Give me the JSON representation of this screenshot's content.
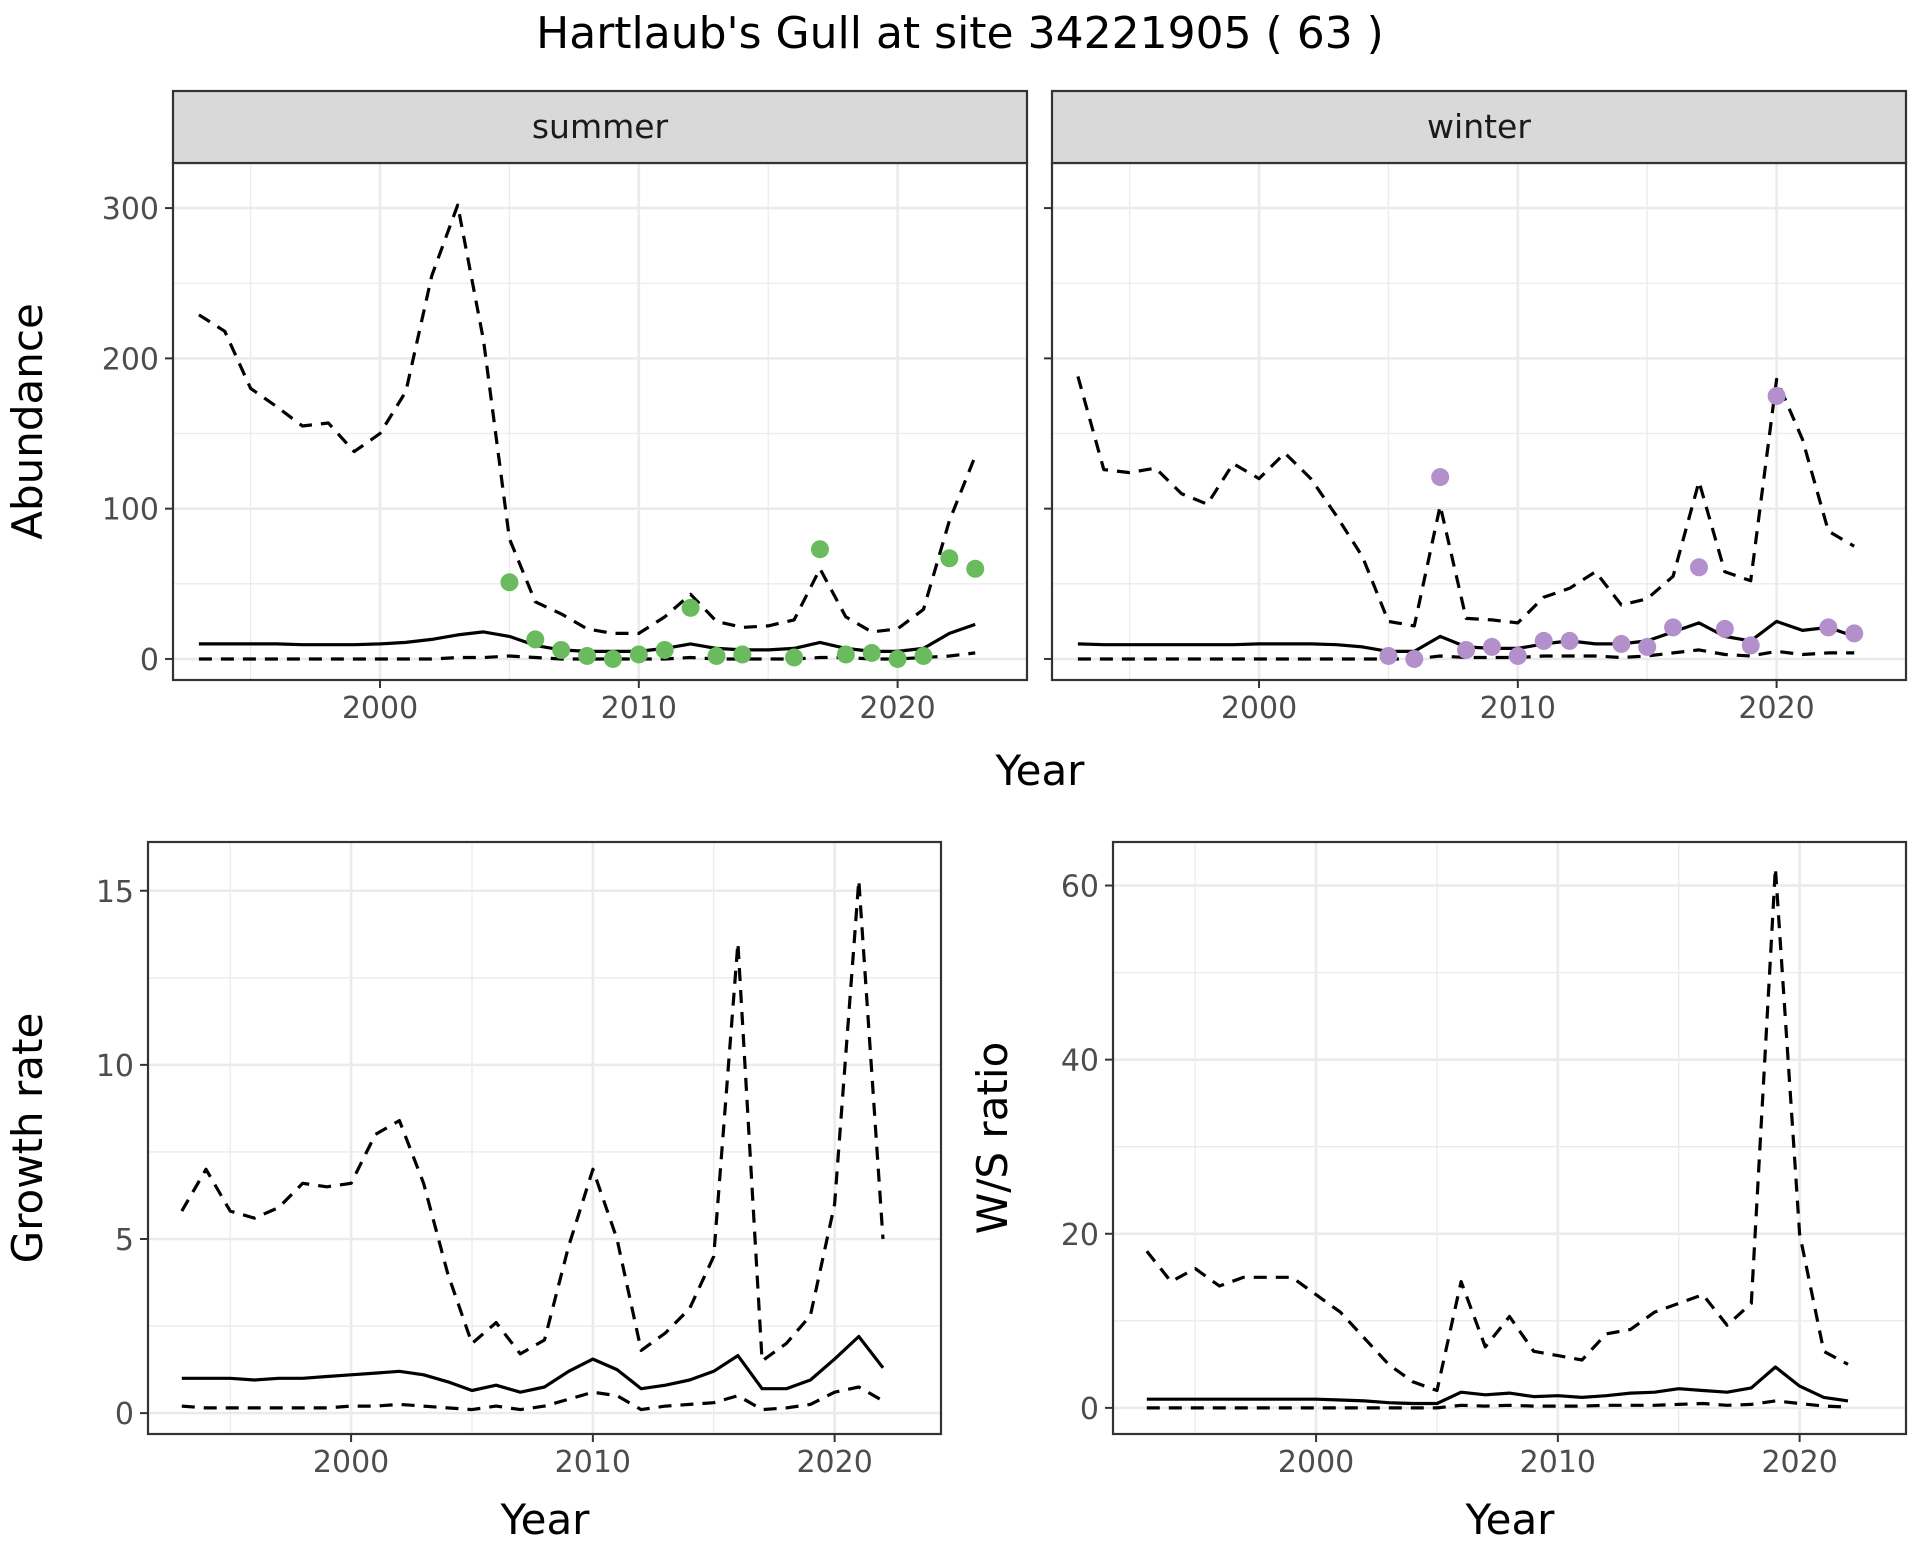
{
  "chart_data": {
    "title": "Hartlaub's Gull at site 34221905 ( 63 )",
    "panels": [
      {
        "id": "abundance",
        "type": "line",
        "ylabel": "Abundance",
        "xlabel": "Year",
        "xlim": [
          1992,
          2025
        ],
        "ylim": [
          -14,
          330
        ],
        "xticks": [
          2000,
          2010,
          2020
        ],
        "yticks": [
          0,
          100,
          200,
          300
        ],
        "grid": true,
        "facets": [
          {
            "strip": "summer",
            "point_color": "#6abb5d",
            "x": [
              1993,
              1994,
              1995,
              1996,
              1997,
              1998,
              1999,
              2000,
              2001,
              2002,
              2003,
              2004,
              2005,
              2006,
              2007,
              2008,
              2009,
              2010,
              2011,
              2012,
              2013,
              2014,
              2015,
              2016,
              2017,
              2018,
              2019,
              2020,
              2021,
              2022,
              2023
            ],
            "series": [
              {
                "style": "dashed",
                "values": [
                  229,
                  218,
                  180,
                  168,
                  155,
                  157,
                  138,
                  150,
                  178,
                  255,
                  302,
                  212,
                  80,
                  38,
                  30,
                  20,
                  17,
                  17,
                  28,
                  43,
                  25,
                  21,
                  22,
                  26,
                  60,
                  28,
                  18,
                  20,
                  33,
                  92,
                  135
                ]
              },
              {
                "style": "solid",
                "values": [
                  10,
                  10,
                  10,
                  10,
                  9.5,
                  9.5,
                  9.5,
                  10,
                  11,
                  13,
                  16,
                  18,
                  15,
                  9,
                  6,
                  5,
                  5,
                  5,
                  7,
                  10,
                  7,
                  6,
                  6,
                  7,
                  11,
                  7,
                  5,
                  5,
                  7,
                  17,
                  23
                ]
              },
              {
                "style": "dashed",
                "values": [
                  0,
                  0,
                  0,
                  0,
                  0,
                  0,
                  0,
                  0,
                  0,
                  0,
                  1,
                  1,
                  2,
                  1,
                  0,
                  0,
                  0,
                  0,
                  0,
                  1,
                  0,
                  0,
                  0,
                  0,
                  1,
                  1,
                  0,
                  0,
                  1,
                  2,
                  4
                ]
              }
            ],
            "points": {
              "x": [
                2005,
                2006,
                2007,
                2008,
                2009,
                2010,
                2011,
                2012,
                2013,
                2014,
                2016,
                2017,
                2018,
                2019,
                2020,
                2021,
                2022,
                2023
              ],
              "y": [
                51,
                13,
                6,
                2,
                0,
                3,
                6,
                34,
                2,
                3,
                1,
                73,
                3,
                4,
                0,
                2,
                67,
                60
              ]
            }
          },
          {
            "strip": "winter",
            "point_color": "#b38fcb",
            "x": [
              1993,
              1994,
              1995,
              1996,
              1997,
              1998,
              1999,
              2000,
              2001,
              2002,
              2003,
              2004,
              2005,
              2006,
              2007,
              2008,
              2009,
              2010,
              2011,
              2012,
              2013,
              2014,
              2015,
              2016,
              2017,
              2018,
              2019,
              2020,
              2021,
              2022,
              2023
            ],
            "series": [
              {
                "style": "dashed",
                "values": [
                  188,
                  126,
                  124,
                  127,
                  110,
                  103,
                  130,
                  120,
                  137,
                  120,
                  95,
                  68,
                  25,
                  22,
                  102,
                  27,
                  26,
                  24,
                  41,
                  47,
                  58,
                  36,
                  40,
                  55,
                  118,
                  58,
                  52,
                  186,
                  146,
                  85,
                  75
                ]
              },
              {
                "style": "solid",
                "values": [
                  10,
                  9.5,
                  9.5,
                  9.5,
                  9.5,
                  9.5,
                  9.5,
                  10,
                  10,
                  10,
                  9.5,
                  8,
                  5,
                  5,
                  15,
                  8,
                  7,
                  7,
                  10,
                  12,
                  10,
                  10,
                  12,
                  18,
                  24,
                  15,
                  12,
                  25,
                  19,
                  21,
                  15
                ]
              },
              {
                "style": "dashed",
                "values": [
                  0,
                  0,
                  0,
                  0,
                  0,
                  0,
                  0,
                  0,
                  0,
                  0,
                  0,
                  0,
                  0,
                  0,
                  2,
                  1,
                  1,
                  1,
                  2,
                  2,
                  2,
                  1,
                  2,
                  4,
                  6,
                  3,
                  2,
                  5,
                  3,
                  4,
                  4
                ]
              }
            ],
            "points": {
              "x": [
                2005,
                2006,
                2007,
                2008,
                2009,
                2010,
                2011,
                2012,
                2014,
                2015,
                2016,
                2017,
                2018,
                2019,
                2020,
                2022,
                2023
              ],
              "y": [
                2,
                0,
                121,
                6,
                8,
                2,
                12,
                12,
                10,
                8,
                21,
                61,
                20,
                9,
                175,
                21,
                17
              ]
            }
          }
        ]
      },
      {
        "id": "growth",
        "type": "line",
        "ylabel": "Growth rate",
        "xlabel": "Year",
        "xlim": [
          1991.6,
          2024.4
        ],
        "ylim": [
          -0.6,
          16.4
        ],
        "xticks": [
          2000,
          2010,
          2020
        ],
        "yticks": [
          0,
          5,
          10,
          15
        ],
        "grid": true,
        "x": [
          1993,
          1994,
          1995,
          1996,
          1997,
          1998,
          1999,
          2000,
          2001,
          2002,
          2003,
          2004,
          2005,
          2006,
          2007,
          2008,
          2009,
          2010,
          2011,
          2012,
          2013,
          2014,
          2015,
          2016,
          2017,
          2018,
          2019,
          2020,
          2021,
          2022
        ],
        "series": [
          {
            "style": "dashed",
            "values": [
              5.8,
              7.0,
              5.8,
              5.6,
              5.9,
              6.6,
              6.5,
              6.6,
              8.0,
              8.4,
              6.6,
              4.0,
              2.0,
              2.6,
              1.7,
              2.1,
              4.8,
              7.0,
              5.0,
              1.8,
              2.3,
              3.0,
              4.5,
              13.5,
              1.5,
              2.0,
              2.8,
              6.0,
              15.3,
              5.0
            ]
          },
          {
            "style": "solid",
            "values": [
              1.0,
              1.0,
              1.0,
              0.95,
              1.0,
              1.0,
              1.05,
              1.1,
              1.15,
              1.2,
              1.1,
              0.9,
              0.65,
              0.8,
              0.6,
              0.75,
              1.2,
              1.55,
              1.25,
              0.7,
              0.8,
              0.95,
              1.2,
              1.65,
              0.7,
              0.7,
              0.95,
              1.55,
              2.2,
              1.3
            ]
          },
          {
            "style": "dashed",
            "values": [
              0.2,
              0.15,
              0.15,
              0.15,
              0.15,
              0.15,
              0.15,
              0.2,
              0.2,
              0.25,
              0.2,
              0.15,
              0.1,
              0.2,
              0.1,
              0.2,
              0.4,
              0.6,
              0.5,
              0.1,
              0.2,
              0.25,
              0.3,
              0.5,
              0.1,
              0.15,
              0.25,
              0.6,
              0.75,
              0.35
            ]
          }
        ]
      },
      {
        "id": "ratio",
        "type": "line",
        "ylabel": "W/S ratio",
        "xlabel": "Year",
        "xlim": [
          1991.6,
          2024.4
        ],
        "ylim": [
          -3,
          65
        ],
        "xticks": [
          2000,
          2010,
          2020
        ],
        "yticks": [
          0,
          20,
          40,
          60
        ],
        "grid": true,
        "x": [
          1993,
          1994,
          1995,
          1996,
          1997,
          1998,
          1999,
          2000,
          2001,
          2002,
          2003,
          2004,
          2005,
          2006,
          2007,
          2008,
          2009,
          2010,
          2011,
          2012,
          2013,
          2014,
          2015,
          2016,
          2017,
          2018,
          2019,
          2020,
          2021,
          2022
        ],
        "series": [
          {
            "style": "dashed",
            "values": [
              18,
              14.5,
              16,
              14,
              15,
              15,
              15,
              13,
              11,
              8,
              5,
              3,
              2,
              14.5,
              7,
              10.5,
              6.5,
              6,
              5.5,
              8.5,
              9,
              11,
              12,
              13,
              9.5,
              12,
              62,
              20,
              6.5,
              5
            ]
          },
          {
            "style": "solid",
            "values": [
              1,
              1,
              1,
              1,
              1,
              1,
              1,
              1,
              0.9,
              0.8,
              0.6,
              0.5,
              0.5,
              1.8,
              1.5,
              1.7,
              1.3,
              1.4,
              1.2,
              1.4,
              1.7,
              1.8,
              2.2,
              2.0,
              1.8,
              2.3,
              4.7,
              2.5,
              1.2,
              0.8
            ]
          },
          {
            "style": "dashed",
            "values": [
              0,
              0,
              0,
              0,
              0,
              0,
              0,
              0,
              0,
              0,
              0,
              0,
              0,
              0.3,
              0.2,
              0.3,
              0.2,
              0.2,
              0.2,
              0.3,
              0.3,
              0.3,
              0.4,
              0.5,
              0.3,
              0.4,
              0.8,
              0.5,
              0.2,
              0.1
            ]
          }
        ]
      }
    ]
  }
}
